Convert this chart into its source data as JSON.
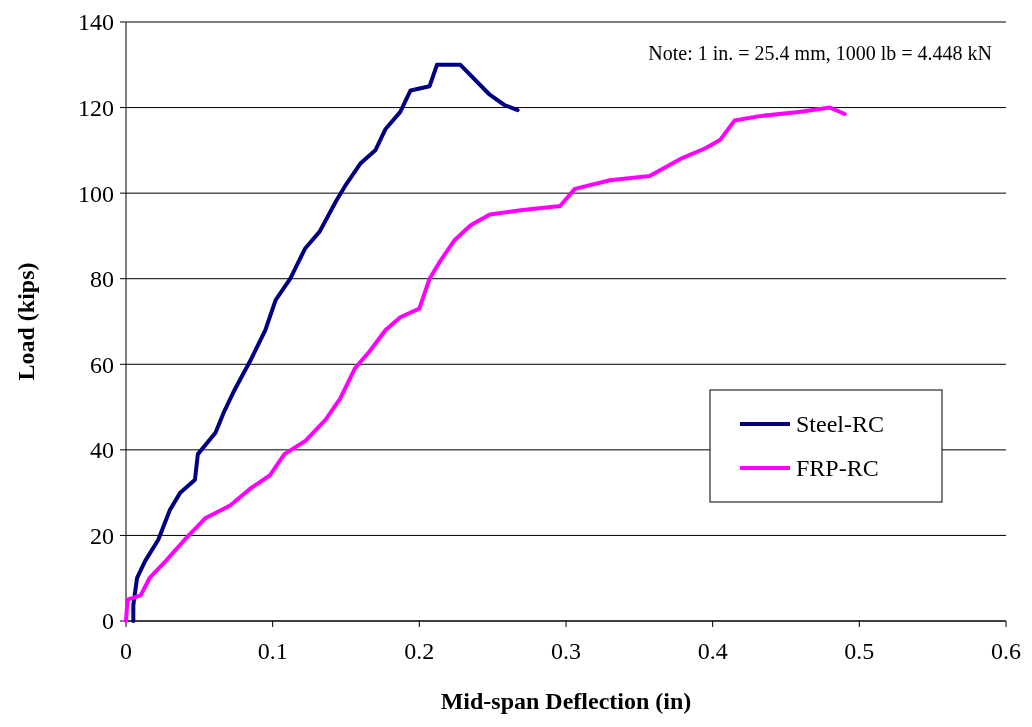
{
  "chart_data": {
    "type": "line",
    "xlabel": "Mid-span Deflection (in)",
    "ylabel": "Load (kips)",
    "xlim": [
      0,
      0.6
    ],
    "xticks": [
      0,
      0.1,
      0.2,
      0.3,
      0.4,
      0.5,
      0.6
    ],
    "ylim": [
      0,
      140
    ],
    "yticks": [
      0,
      20,
      40,
      60,
      80,
      100,
      120,
      140
    ],
    "grid": "y",
    "legend": "right",
    "marker": "none",
    "line_style": "solid",
    "annotations": [
      "Note: 1 in. = 25.4 mm, 1000 lb = 4.448 kN"
    ],
    "series": [
      {
        "name": "Steel-RC",
        "color": "#000080",
        "x": [
          0.005,
          0.005,
          0.0075,
          0.013,
          0.022,
          0.03,
          0.037,
          0.047,
          0.049,
          0.061,
          0.067,
          0.074,
          0.085,
          0.095,
          0.102,
          0.112,
          0.122,
          0.132,
          0.143,
          0.15,
          0.16,
          0.17,
          0.177,
          0.187,
          0.194,
          0.207,
          0.212,
          0.228,
          0.248,
          0.258,
          0.267
        ],
        "values": [
          0,
          3.7,
          10,
          14,
          19,
          26,
          30,
          33,
          39,
          44,
          49,
          54,
          61,
          68,
          75,
          80,
          87,
          91,
          98,
          102,
          107,
          110,
          115,
          119,
          124,
          125,
          130,
          130,
          123,
          120.6,
          119.4
        ]
      },
      {
        "name": "FRP-RC",
        "color": "#ff00ff",
        "x": [
          0,
          0.001,
          0.01,
          0.016,
          0.027,
          0.04,
          0.054,
          0.071,
          0.085,
          0.098,
          0.108,
          0.122,
          0.136,
          0.146,
          0.156,
          0.166,
          0.177,
          0.187,
          0.2,
          0.207,
          0.214,
          0.224,
          0.235,
          0.248,
          0.269,
          0.296,
          0.306,
          0.33,
          0.357,
          0.378,
          0.395,
          0.405,
          0.415,
          0.432,
          0.46,
          0.48,
          0.49
        ],
        "values": [
          0,
          5,
          6,
          10,
          14,
          19,
          24,
          27,
          31,
          34,
          39,
          42,
          47,
          52,
          59,
          63,
          68,
          71,
          73,
          80,
          84,
          89,
          92.5,
          95,
          96,
          97,
          101,
          103,
          104,
          108,
          110.5,
          112.4,
          117,
          118,
          119,
          120,
          118.5
        ]
      }
    ]
  }
}
